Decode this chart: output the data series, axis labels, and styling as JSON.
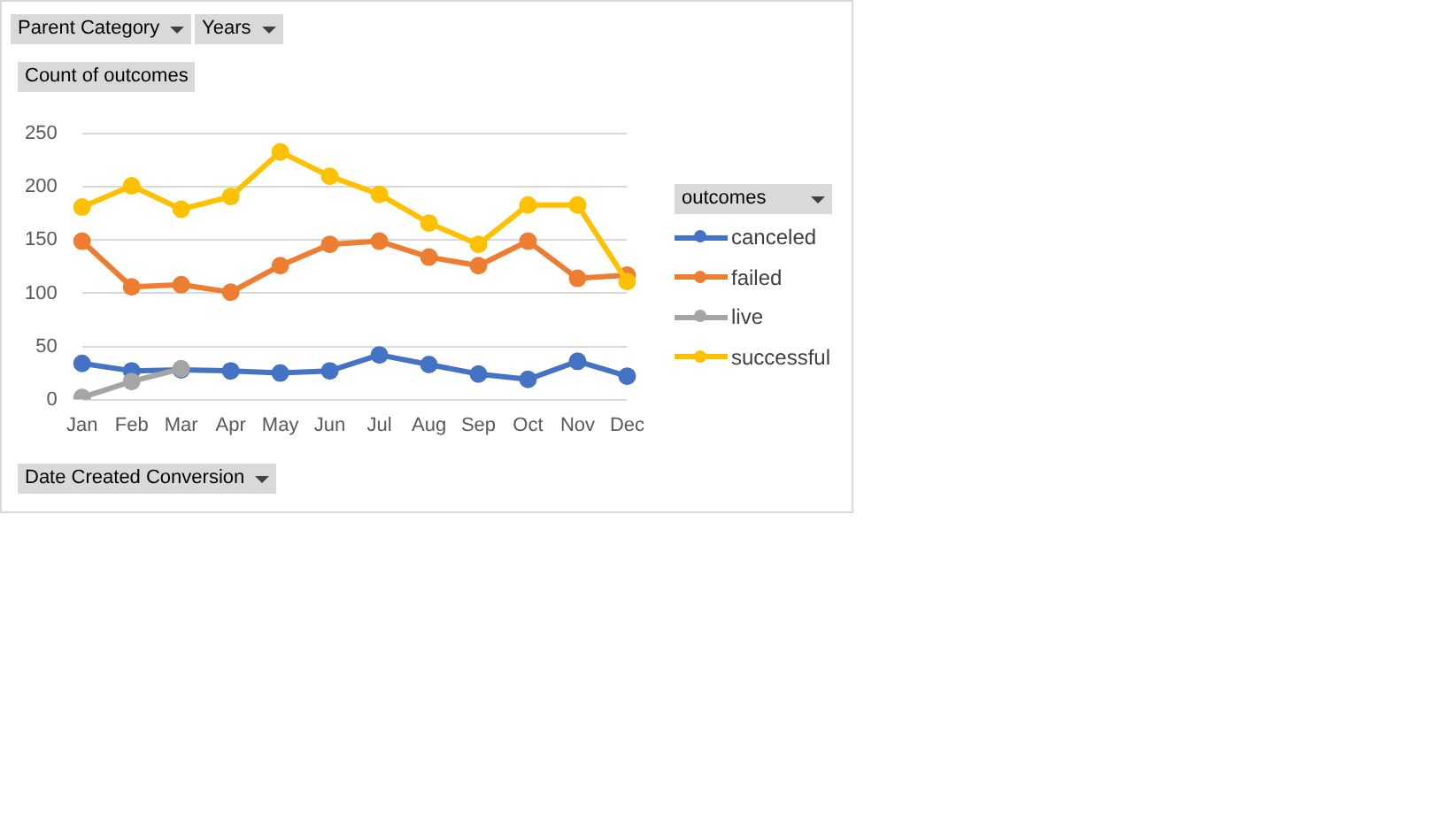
{
  "chart_data": {
    "type": "line",
    "ylabel": "Count of outcomes",
    "xlabel": "Date Created Conversion",
    "legend_title": "outcomes",
    "annotations": [
      "Parent Category",
      "Years"
    ],
    "categories": [
      "Jan",
      "Feb",
      "Mar",
      "Apr",
      "May",
      "Jun",
      "Jul",
      "Aug",
      "Sep",
      "Oct",
      "Nov",
      "Dec"
    ],
    "series": [
      {
        "name": "canceled",
        "color": "#4472c4",
        "values": [
          34,
          27,
          28,
          27,
          25,
          27,
          42,
          33,
          24,
          19,
          36,
          22
        ]
      },
      {
        "name": "failed",
        "color": "#ed7d31",
        "values": [
          149,
          106,
          108,
          101,
          126,
          146,
          149,
          134,
          126,
          149,
          114,
          117
        ]
      },
      {
        "name": "live",
        "color": "#a5a5a5",
        "values": [
          2,
          17,
          29,
          null,
          null,
          null,
          null,
          null,
          null,
          null,
          null,
          null
        ]
      },
      {
        "name": "successful",
        "color": "#ffc000",
        "values": [
          181,
          201,
          179,
          191,
          233,
          210,
          193,
          166,
          146,
          183,
          183,
          111
        ]
      }
    ],
    "ylim": [
      0,
      250
    ],
    "yticks": [
      0,
      50,
      100,
      150,
      200,
      250
    ],
    "grid": "y",
    "legend": "right",
    "marker": "circle",
    "line_style": "solid"
  }
}
